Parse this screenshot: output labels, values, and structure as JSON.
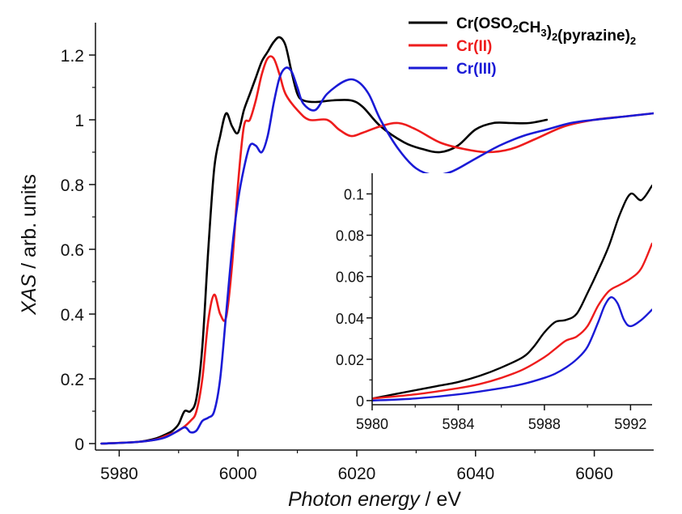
{
  "chart_data": [
    {
      "type": "line",
      "xlabel": {
        "italic": "Photon energy",
        "normal": " / eV"
      },
      "ylabel": {
        "italic": "XAS",
        "normal": " / arb. units"
      },
      "xlim": [
        5976,
        6070
      ],
      "ylim": [
        -0.02,
        1.3
      ],
      "xticks": [
        5980,
        6000,
        6020,
        6040,
        6060
      ],
      "yticks": [
        0,
        0.2,
        0.4,
        0.6,
        0.8,
        1,
        1.2
      ],
      "ytick_labels": [
        "0",
        "0.2",
        "0.4",
        "0.6",
        "0.8",
        "1",
        "1.2"
      ],
      "legend_position": "top-right",
      "series": [
        {
          "name": "Cr(OSO2CH3)2(pyrazine)2",
          "legend_parts": [
            [
              "Cr(OSO",
              false
            ],
            [
              "2",
              true
            ],
            [
              "CH",
              false
            ],
            [
              "3",
              true
            ],
            [
              ")",
              false
            ],
            [
              "2",
              true
            ],
            [
              "(pyrazine)",
              false
            ],
            [
              "2",
              true
            ]
          ],
          "color": "#000000",
          "x": [
            5977,
            5983,
            5986,
            5988,
            5989,
            5990,
            5991,
            5992,
            5993,
            5994,
            5995,
            5996,
            5997,
            5998,
            5999,
            6000,
            6001,
            6002,
            6003,
            6004,
            6005,
            6006,
            6007,
            6008,
            6009,
            6010,
            6011,
            6013,
            6016,
            6019,
            6021,
            6024,
            6028,
            6031,
            6034,
            6037,
            6040,
            6043,
            6046,
            6049,
            6052
          ],
          "y": [
            0,
            0.005,
            0.015,
            0.03,
            0.04,
            0.06,
            0.1,
            0.1,
            0.14,
            0.3,
            0.6,
            0.85,
            0.95,
            1.02,
            0.98,
            0.96,
            1.03,
            1.08,
            1.13,
            1.18,
            1.21,
            1.24,
            1.255,
            1.23,
            1.15,
            1.08,
            1.06,
            1.055,
            1.06,
            1.06,
            1.04,
            0.98,
            0.93,
            0.91,
            0.9,
            0.92,
            0.97,
            0.99,
            0.99,
            0.99,
            1.0
          ]
        },
        {
          "name": "Cr(II)",
          "legend_parts": [
            [
              "Cr(II)",
              false
            ]
          ],
          "color": "#ee1c1c",
          "x": [
            5977,
            5983,
            5986,
            5988,
            5990,
            5992,
            5993,
            5994,
            5995,
            5996,
            5997,
            5998,
            5999,
            6000,
            6001,
            6002,
            6003,
            6004,
            6005,
            6006,
            6007,
            6008,
            6010,
            6012,
            6015,
            6017,
            6019,
            6021,
            6024,
            6027,
            6030,
            6034,
            6038,
            6042,
            6046,
            6050,
            6055,
            6060,
            6065,
            6070
          ],
          "y": [
            0,
            0.005,
            0.012,
            0.025,
            0.04,
            0.07,
            0.1,
            0.2,
            0.38,
            0.46,
            0.4,
            0.39,
            0.55,
            0.8,
            0.98,
            1.0,
            1.06,
            1.14,
            1.19,
            1.19,
            1.14,
            1.08,
            1.03,
            1.0,
            1.0,
            0.97,
            0.95,
            0.96,
            0.98,
            0.99,
            0.97,
            0.93,
            0.91,
            0.9,
            0.91,
            0.94,
            0.98,
            1.0,
            1.01,
            1.02
          ]
        },
        {
          "name": "Cr(III)",
          "legend_parts": [
            [
              "Cr(III)",
              false
            ]
          ],
          "color": "#1a1ad6",
          "x": [
            5977,
            5983,
            5987,
            5989,
            5991,
            5992,
            5993,
            5994,
            5995,
            5996,
            5997,
            5998,
            5999,
            6000,
            6001,
            6002,
            6003,
            6004,
            6005,
            6006,
            6007,
            6008,
            6009,
            6010,
            6011,
            6013,
            6015,
            6018,
            6020,
            6022,
            6024,
            6027,
            6030,
            6033,
            6036,
            6040,
            6044,
            6048,
            6052,
            6056,
            6060,
            6065,
            6070
          ],
          "y": [
            0,
            0.005,
            0.015,
            0.03,
            0.05,
            0.035,
            0.04,
            0.07,
            0.08,
            0.1,
            0.2,
            0.4,
            0.6,
            0.75,
            0.85,
            0.92,
            0.92,
            0.9,
            0.95,
            1.05,
            1.13,
            1.16,
            1.15,
            1.1,
            1.05,
            1.03,
            1.08,
            1.12,
            1.12,
            1.08,
            1.0,
            0.91,
            0.85,
            0.83,
            0.84,
            0.88,
            0.92,
            0.95,
            0.97,
            0.99,
            1.0,
            1.01,
            1.02
          ]
        }
      ]
    },
    {
      "type": "line",
      "inset": true,
      "xlim": [
        5980,
        5993
      ],
      "ylim": [
        -0.002,
        0.11
      ],
      "xticks": [
        5980,
        5984,
        5988,
        5992
      ],
      "yticks": [
        0,
        0.02,
        0.04,
        0.06,
        0.08,
        0.1
      ],
      "ytick_labels": [
        "0",
        "0.02",
        "0.04",
        "0.06",
        "0.08",
        "0.1"
      ],
      "series": [
        {
          "name": "Cr(OSO2CH3)2(pyrazine)2",
          "color": "#000000",
          "x": [
            5980,
            5981,
            5982,
            5983,
            5984,
            5985,
            5986,
            5987,
            5987.5,
            5988,
            5988.5,
            5989,
            5989.5,
            5990,
            5990.5,
            5991,
            5991.5,
            5992,
            5992.5,
            5993
          ],
          "y": [
            0.001,
            0.003,
            0.005,
            0.007,
            0.009,
            0.012,
            0.016,
            0.021,
            0.026,
            0.033,
            0.038,
            0.039,
            0.042,
            0.052,
            0.063,
            0.075,
            0.09,
            0.1,
            0.097,
            0.104
          ]
        },
        {
          "name": "Cr(II)",
          "color": "#ee1c1c",
          "x": [
            5980,
            5982,
            5984,
            5985,
            5986,
            5987,
            5988,
            5988.5,
            5989,
            5989.5,
            5990,
            5990.5,
            5991,
            5991.5,
            5992,
            5992.5,
            5993
          ],
          "y": [
            0.001,
            0.003,
            0.006,
            0.008,
            0.011,
            0.015,
            0.021,
            0.025,
            0.029,
            0.031,
            0.036,
            0.046,
            0.053,
            0.056,
            0.059,
            0.064,
            0.076
          ]
        },
        {
          "name": "Cr(III)",
          "color": "#1a1ad6",
          "x": [
            5980,
            5982,
            5984,
            5986,
            5987,
            5988,
            5988.5,
            5989,
            5989.5,
            5990,
            5990.5,
            5990.8,
            5991.1,
            5991.4,
            5991.7,
            5992,
            5992.5,
            5993
          ],
          "y": [
            0.0,
            0.001,
            0.003,
            0.006,
            0.008,
            0.011,
            0.013,
            0.016,
            0.02,
            0.026,
            0.038,
            0.046,
            0.05,
            0.047,
            0.039,
            0.036,
            0.039,
            0.044
          ]
        }
      ]
    }
  ]
}
